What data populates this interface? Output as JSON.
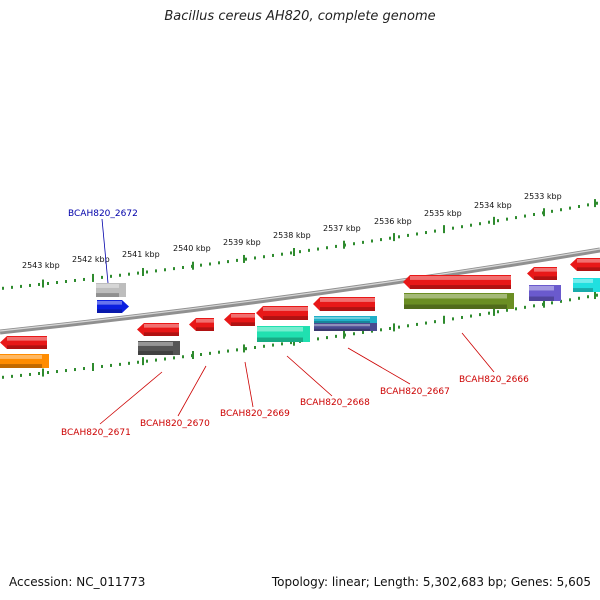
{
  "title": "Bacillus cereus AH820, complete genome",
  "footer": {
    "accession": "Accession: NC_011773",
    "summary": "Topology: linear; Length: 5,302,683 bp; Genes: 5,605"
  },
  "colors": {
    "backbone": "#8a8a8a",
    "tick": "#2e8b2e",
    "label_minus": "#cc0000",
    "label_plus": "#0000aa"
  },
  "scale_labels": [
    "2543 kbp",
    "2542 kbp",
    "2541 kbp",
    "2540 kbp",
    "2539 kbp",
    "2538 kbp",
    "2537 kbp",
    "2536 kbp",
    "2535 kbp",
    "2534 kbp",
    "2533 kbp"
  ],
  "gene_labels": [
    {
      "name": "BCAH820_2672",
      "strand": "plus"
    },
    {
      "name": "BCAH820_2671",
      "strand": "minus"
    },
    {
      "name": "BCAH820_2670",
      "strand": "minus"
    },
    {
      "name": "BCAH820_2669",
      "strand": "minus"
    },
    {
      "name": "BCAH820_2668",
      "strand": "minus"
    },
    {
      "name": "BCAH820_2667",
      "strand": "minus"
    },
    {
      "name": "BCAH820_2666",
      "strand": "minus"
    }
  ],
  "features": [
    {
      "kind": "gene",
      "strand": "plus",
      "color": "#e81818"
    },
    {
      "kind": "gene",
      "strand": "plus",
      "color": "#0a1fe0"
    },
    {
      "kind": "gene",
      "strand": "minus",
      "color": "#e81818"
    },
    {
      "kind": "gene",
      "strand": "minus",
      "color": "#e81818"
    },
    {
      "kind": "gene",
      "strand": "minus",
      "color": "#e81818"
    },
    {
      "kind": "gene",
      "strand": "minus",
      "color": "#e81818"
    },
    {
      "kind": "gene",
      "strand": "minus",
      "color": "#e81818"
    },
    {
      "kind": "gene",
      "strand": "minus",
      "color": "#e81818"
    },
    {
      "kind": "gene",
      "strand": "minus",
      "color": "#e81818"
    },
    {
      "kind": "gene",
      "strand": "minus",
      "color": "#e81818"
    },
    {
      "kind": "gene",
      "strand": "plus",
      "color": "#e81818"
    },
    {
      "kind": "cog",
      "color": "#ff8c00"
    },
    {
      "kind": "cog",
      "color": "#bdbdbd"
    },
    {
      "kind": "cog",
      "color": "#555555"
    },
    {
      "kind": "cog",
      "color": "#20e0b0"
    },
    {
      "kind": "cog",
      "color": "#20b0c8"
    },
    {
      "kind": "cog",
      "color": "#4a4a90"
    },
    {
      "kind": "cog",
      "color": "#6b8e23"
    },
    {
      "kind": "cog",
      "color": "#6a5acd"
    },
    {
      "kind": "cog",
      "color": "#20e0e0"
    }
  ]
}
